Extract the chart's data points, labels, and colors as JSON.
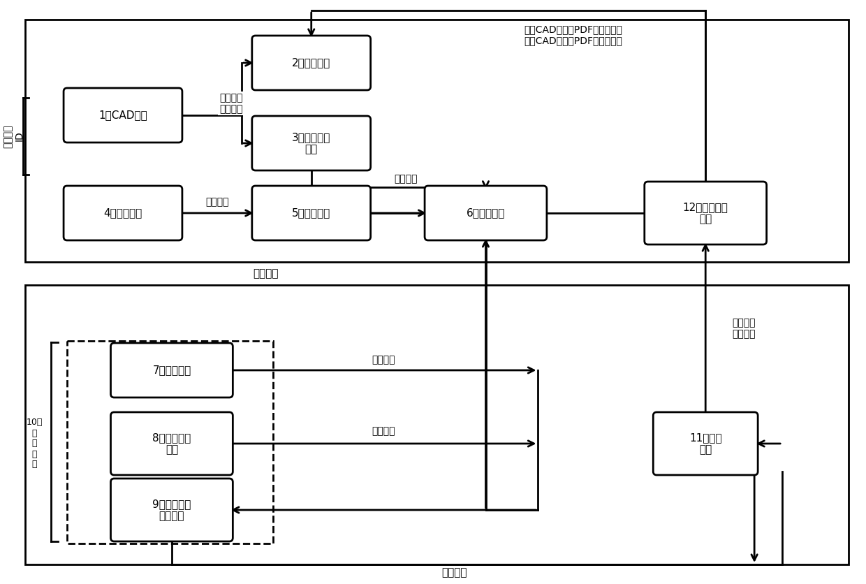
{
  "bg_color": "#ffffff",
  "labels": {
    "1": "1、CAD图纸",
    "2": "2、编号图纸",
    "3": "3、编号数据\n文件",
    "4": "4、报告模板",
    "5": "5、空白报告",
    "6": "6、编号报告",
    "7": "7、检测特征",
    "8": "8、尺寸输出\n特征",
    "9": "9、编号数据\n提取程序",
    "11": "11、测量\n报告",
    "12": "12、尺寸检测\n报告"
  },
  "arrow_labels": {
    "dim_num": "尺寸编号\n快速编号",
    "new_report": "新建报告",
    "report_import": "报告导入",
    "dim_match": "尺寸匹配",
    "output_range": "输出范围",
    "joint_output": "联合输出",
    "prog_run": "程序运行",
    "import_num": "导入编号\n导入数据",
    "top_right": "关联CAD、关联PDF、关联特征\n查询CAD、查询PDF、查询特征"
  },
  "side_labels": {
    "left_top": "标注当前\nID",
    "left_bot": "10、\n测\n量\n程\n序"
  }
}
